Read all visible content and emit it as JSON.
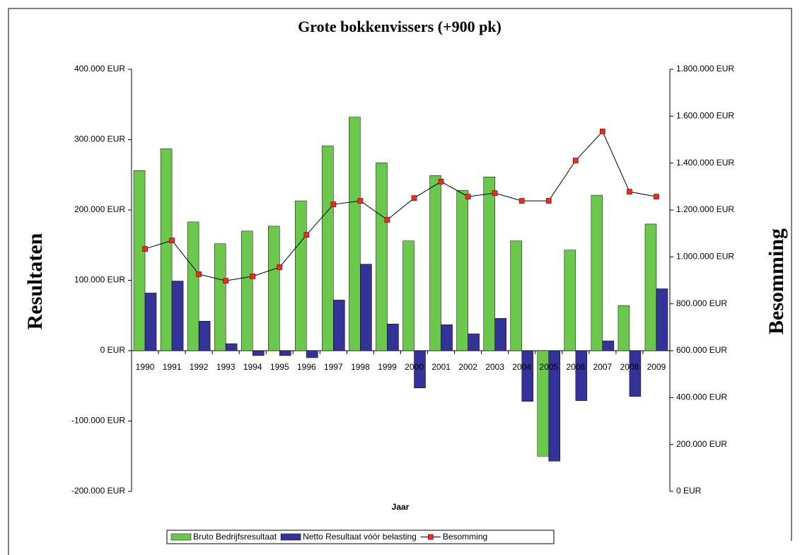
{
  "chart_data": {
    "type": "bar-line",
    "title": "Grote bokkenvissers (+900 pk)",
    "y_label": "Resultaten",
    "y2_label": "Besomming",
    "x_label": "Jaar",
    "categories": [
      "1990",
      "1991",
      "1992",
      "1993",
      "1994",
      "1995",
      "1996",
      "1997",
      "1998",
      "1999",
      "2000",
      "2001",
      "2002",
      "2003",
      "2004",
      "2005",
      "2006",
      "2007",
      "2008",
      "2009"
    ],
    "series": [
      {
        "name": "Bruto Bedrijfsresultaat",
        "type": "bar",
        "color": "#6cc84c",
        "values": [
          256000,
          287000,
          183000,
          152000,
          170000,
          177000,
          213000,
          291000,
          332000,
          267000,
          156000,
          249000,
          228000,
          247000,
          156000,
          -150000,
          143000,
          221000,
          64000,
          180000
        ]
      },
      {
        "name": "Netto Resultaat vóór belasting",
        "type": "bar",
        "color": "#333399",
        "values": [
          82000,
          99000,
          42000,
          10000,
          -7000,
          -7000,
          -10000,
          72000,
          123000,
          38000,
          -53000,
          37000,
          24000,
          46000,
          -72000,
          -157000,
          -71000,
          14000,
          -65000,
          88000
        ]
      },
      {
        "name": "Besomming",
        "type": "line",
        "axis": "y2",
        "color": "#000000",
        "marker_color": "#e8301c",
        "values": [
          1034000,
          1070000,
          926000,
          898000,
          917000,
          956000,
          1094000,
          1224000,
          1239000,
          1158000,
          1251000,
          1321000,
          1257000,
          1272000,
          1239000,
          1239000,
          1411000,
          1535000,
          1278000,
          1257000
        ]
      }
    ],
    "ylim": [
      -200000,
      400000
    ],
    "yticks": [
      {
        "value": -200000,
        "label": "-200.000 EUR"
      },
      {
        "value": -100000,
        "label": "-100.000 EUR"
      },
      {
        "value": 0,
        "label": "0 EUR"
      },
      {
        "value": 100000,
        "label": "100.000 EUR"
      },
      {
        "value": 200000,
        "label": "200.000 EUR"
      },
      {
        "value": 300000,
        "label": "300.000 EUR"
      },
      {
        "value": 400000,
        "label": "400.000 EUR"
      }
    ],
    "y2lim": [
      0,
      1800000
    ],
    "y2ticks": [
      {
        "value": 0,
        "label": "0 EUR"
      },
      {
        "value": 200000,
        "label": "200.000 EUR"
      },
      {
        "value": 400000,
        "label": "400.000 EUR"
      },
      {
        "value": 600000,
        "label": "600.000 EUR"
      },
      {
        "value": 800000,
        "label": "800.000 EUR"
      },
      {
        "value": 1000000,
        "label": "1.000.000 EUR"
      },
      {
        "value": 1200000,
        "label": "1.200.000 EUR"
      },
      {
        "value": 1400000,
        "label": "1.400.000 EUR"
      },
      {
        "value": 1600000,
        "label": "1.600.000 EUR"
      },
      {
        "value": 1800000,
        "label": "1.800.000 EUR"
      }
    ],
    "legend": "bottom"
  }
}
